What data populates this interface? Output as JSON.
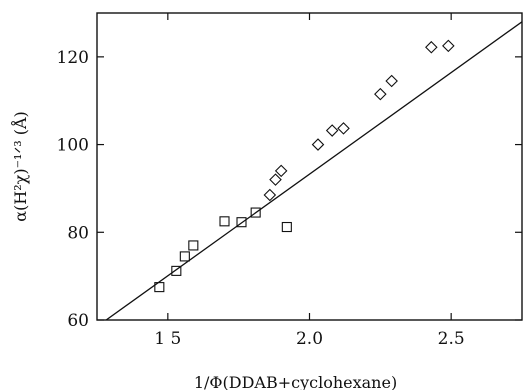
{
  "chart_data": {
    "type": "scatter",
    "xlabel": "1/Φ(DDAB+cyclohexane)",
    "ylabel": "α(H²χ)⁻¹ᐟ³ (Å)",
    "xlim": [
      1.25,
      2.75
    ],
    "ylim": [
      60,
      130
    ],
    "xticks": [
      1.5,
      2.0,
      2.5
    ],
    "xtick_labels": [
      "1 5",
      "2.0",
      "2.5"
    ],
    "yticks": [
      60,
      80,
      100,
      120
    ],
    "ytick_labels": [
      "60",
      "80",
      "100",
      "120"
    ],
    "grid": false,
    "series": [
      {
        "marker": "square",
        "x": [
          1.47,
          1.53,
          1.56,
          1.59,
          1.7,
          1.76,
          1.81,
          1.92
        ],
        "y": [
          67.5,
          71.2,
          74.5,
          77.0,
          82.5,
          82.3,
          84.5,
          81.2
        ]
      },
      {
        "marker": "diamond",
        "x": [
          1.86,
          1.88,
          1.9,
          2.03,
          2.08,
          2.12,
          2.25,
          2.29,
          2.43,
          2.49
        ],
        "y": [
          88.5,
          92.0,
          94.0,
          100.0,
          103.2,
          103.7,
          111.5,
          114.5,
          122.2,
          122.5
        ]
      }
    ],
    "fit_line": {
      "x": [
        1.25,
        2.75
      ],
      "y": [
        58.5,
        128.0
      ]
    }
  }
}
